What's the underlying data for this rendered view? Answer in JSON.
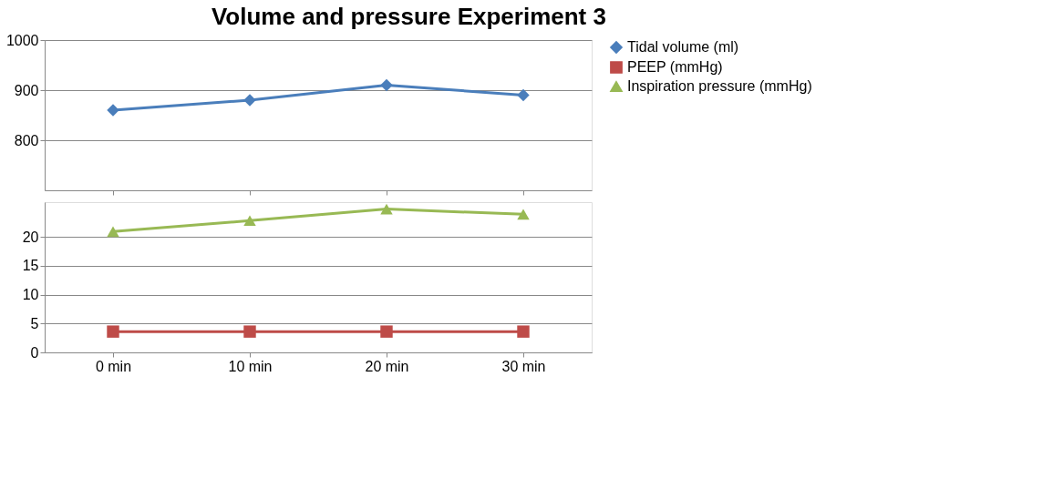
{
  "chart_data": [
    {
      "type": "line",
      "title": "Volume and pressure Experiment 3",
      "categories": [
        null,
        null,
        null,
        null
      ],
      "ylim": [
        700,
        1000
      ],
      "yticks": [
        800,
        900,
        1000
      ],
      "grid": "y",
      "legend": "right",
      "tick_labels": "y",
      "series": [
        {
          "name": "Tidal volume (ml)",
          "color": "#4a7ebb",
          "marker": "diamond",
          "values": [
            860,
            880,
            910,
            890
          ]
        }
      ]
    },
    {
      "type": "line",
      "categories": [
        "0 min",
        "10 min",
        "20 min",
        "30 min"
      ],
      "ylim": [
        0,
        26
      ],
      "yticks": [
        0,
        5,
        10,
        15,
        20
      ],
      "grid": "y",
      "legend": "right",
      "series": [
        {
          "name": "PEEP (mmHg)",
          "color": "#be4b48",
          "marker": "square",
          "values": [
            3.6,
            3.6,
            3.6,
            3.6
          ]
        },
        {
          "name": "Inspiration pressure (mmHg)",
          "color": "#98b954",
          "marker": "triangle",
          "values": [
            20.9,
            22.8,
            24.8,
            23.9
          ]
        }
      ]
    }
  ]
}
